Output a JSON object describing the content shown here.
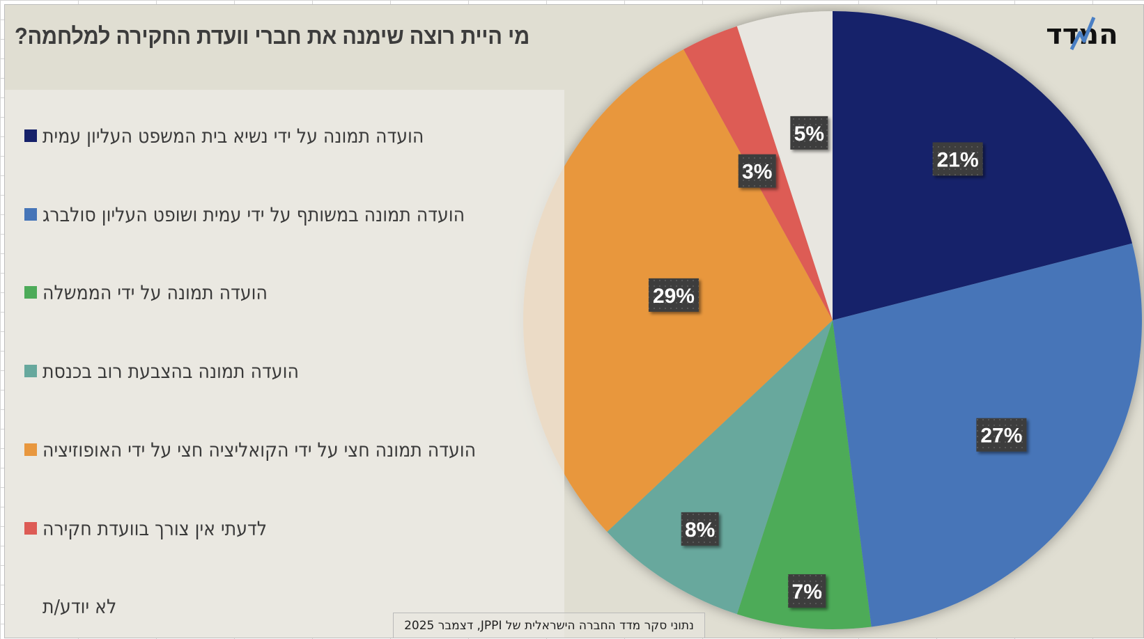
{
  "chart_data": {
    "type": "pie",
    "title": "מי היית רוצה שימנה את חברי וועדת החקירה למלחמה?",
    "unit": "%",
    "start_angle_deg": 0,
    "direction": "clockwise",
    "legend_position": "left",
    "slices": [
      {
        "label": "הועדה תמונה על ידי נשיא בית המשפט העליון עמית",
        "value": 21,
        "display": "21%",
        "color": "#16216a"
      },
      {
        "label": "הועדה תמונה במשותף על ידי עמית ושופט העליון סולברג",
        "value": 27,
        "display": "27%",
        "color": "#4675b8"
      },
      {
        "label": "הועדה תמונה על ידי הממשלה",
        "value": 7,
        "display": "7%",
        "color": "#4dab59"
      },
      {
        "label": "הועדה תמונה בהצבעת רוב בכנסת",
        "value": 8,
        "display": "8%",
        "color": "#67a89d"
      },
      {
        "label": "הועדה תמונה חצי על ידי הקואליציה חצי על ידי האופוזיציה",
        "value": 29,
        "display": "29%",
        "color": "#e8973e"
      },
      {
        "label": "לדעתי אין צורך בוועדת חקירה",
        "value": 3,
        "display": "3%",
        "color": "#dd5b55"
      },
      {
        "label": "לא יודע/ת",
        "value": 5,
        "display": "5%",
        "color": "#e8e6e0"
      }
    ]
  },
  "logo": {
    "text": "המדד",
    "icon": "hamadad-logo-zigzag-icon",
    "accent": "#4a7fc4"
  },
  "caption": "נתוני סקר מדד החברה הישראלית של JPPI, דצמבר 2025",
  "colors": {
    "chart_bg": "#e0ded2",
    "legend_bg": "#eceae4",
    "label_bg": "#3d3d3d"
  }
}
